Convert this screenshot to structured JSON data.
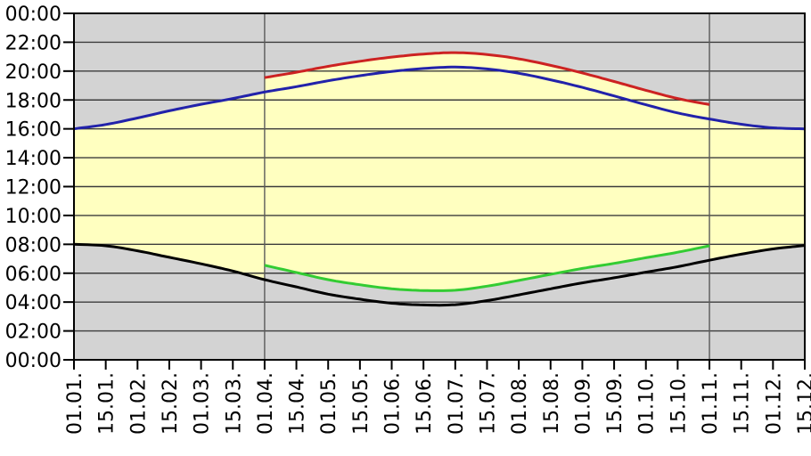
{
  "chart_data": {
    "type": "area",
    "title": "",
    "xlabel": "",
    "ylabel": "",
    "x_tick_labels": [
      "01.01.",
      "15.01.",
      "01.02.",
      "15.02.",
      "01.03.",
      "15.03.",
      "01.04.",
      "15.04.",
      "01.05.",
      "15.05.",
      "01.06.",
      "15.06.",
      "01.07.",
      "15.07.",
      "01.08.",
      "15.08.",
      "01.09.",
      "15.09.",
      "01.10.",
      "15.10.",
      "01.11.",
      "15.11.",
      "01.12.",
      "15.12."
    ],
    "y_tick_labels_bottom_to_top": [
      "00:00",
      "02:00",
      "04:00",
      "06:00",
      "08:00",
      "10:00",
      "12:00",
      "14:00",
      "16:00",
      "18:00",
      "20:00",
      "22:00",
      "00:00"
    ],
    "y_axis": {
      "min_hour": 0,
      "max_hour": 24,
      "step_hours": 2
    },
    "grid": {
      "horizontal": "every 2 hours",
      "vertical_gridlines_at_labels": [
        "01.04.",
        "01.11."
      ]
    },
    "dst_window": {
      "start_label": "01.04.",
      "end_label": "01.11.",
      "start_index": 6,
      "end_index": 20
    },
    "series": [
      {
        "name": "sunrise_standard_time",
        "color": "#000000",
        "values": [
          8.0,
          7.9,
          7.55,
          7.1,
          6.65,
          6.15,
          5.55,
          5.05,
          4.55,
          4.2,
          3.92,
          3.8,
          3.82,
          4.1,
          4.5,
          4.92,
          5.33,
          5.68,
          6.07,
          6.45,
          6.9,
          7.32,
          7.68,
          7.92
        ]
      },
      {
        "name": "sunset_standard_time",
        "color": "#2222aa",
        "values": [
          16.0,
          16.3,
          16.75,
          17.25,
          17.7,
          18.1,
          18.55,
          18.92,
          19.33,
          19.68,
          19.97,
          20.18,
          20.28,
          20.15,
          19.85,
          19.4,
          18.87,
          18.28,
          17.67,
          17.1,
          16.68,
          16.32,
          16.07,
          16.0
        ]
      },
      {
        "name": "sunrise_daylight_saving_time",
        "color": "#33cc33",
        "values": [
          null,
          null,
          null,
          null,
          null,
          null,
          6.55,
          6.05,
          5.55,
          5.2,
          4.92,
          4.8,
          4.82,
          5.1,
          5.5,
          5.92,
          6.33,
          6.68,
          7.07,
          7.45,
          7.9,
          null,
          null,
          null
        ]
      },
      {
        "name": "sunset_daylight_saving_time",
        "color": "#cc2222",
        "values": [
          null,
          null,
          null,
          null,
          null,
          null,
          19.55,
          19.92,
          20.33,
          20.68,
          20.97,
          21.18,
          21.28,
          21.15,
          20.85,
          20.4,
          19.87,
          19.28,
          18.67,
          18.1,
          17.68,
          null,
          null,
          null
        ]
      }
    ],
    "colors": {
      "daylight_fill": "#ffffc0",
      "night_fill": "#d3d3d3",
      "horizontal_gridline": "#3c3c3c",
      "vertical_gridline": "#5a5a5a",
      "axis_border": "#000000"
    },
    "legend": "none"
  }
}
